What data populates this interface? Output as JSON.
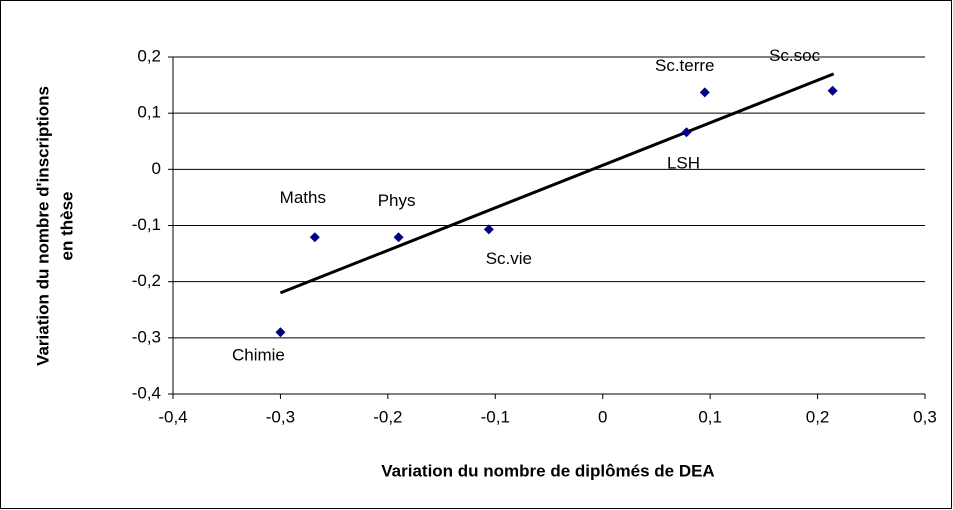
{
  "chart_data": {
    "type": "scatter",
    "xlabel": "Variation du nombre de diplômés de DEA",
    "ylabel": [
      "Variation du nombre d'inscriptions",
      "en thèse"
    ],
    "labels": [
      "Chimie",
      "Maths",
      "Phys",
      "Sc.vie",
      "LSH",
      "Sc.terre",
      "Sc.soc"
    ],
    "x": [
      -0.3,
      -0.268,
      -0.19,
      -0.106,
      0.078,
      0.095,
      0.214
    ],
    "y": [
      -0.29,
      -0.121,
      -0.121,
      -0.107,
      0.066,
      0.137,
      0.14
    ],
    "color": "#000080",
    "trendline": {
      "x": [
        -0.3,
        0.215
      ],
      "y": [
        -0.22,
        0.17
      ],
      "color": "#000000"
    },
    "xlim": [
      -0.4,
      0.3
    ],
    "ylim": [
      -0.4,
      0.2
    ],
    "xticks": [
      {
        "value": -0.4,
        "label": "-0,4"
      },
      {
        "value": -0.3,
        "label": "-0,3"
      },
      {
        "value": -0.2,
        "label": "-0,2"
      },
      {
        "value": -0.1,
        "label": "-0,1"
      },
      0,
      {
        "value": 0.1,
        "label": "0,1"
      },
      {
        "value": 0.2,
        "label": "0,2"
      },
      {
        "value": 0.3,
        "label": "0,3"
      }
    ],
    "yticks": [
      {
        "value": -0.4,
        "label": "-0,4"
      },
      {
        "value": -0.3,
        "label": "-0,3"
      },
      {
        "value": -0.2,
        "label": "-0,2"
      },
      {
        "value": -0.1,
        "label": "-0,1"
      },
      0,
      {
        "value": 0.1,
        "label": "0,1"
      },
      {
        "value": 0.2,
        "label": "0,2"
      }
    ],
    "grid": true
  }
}
